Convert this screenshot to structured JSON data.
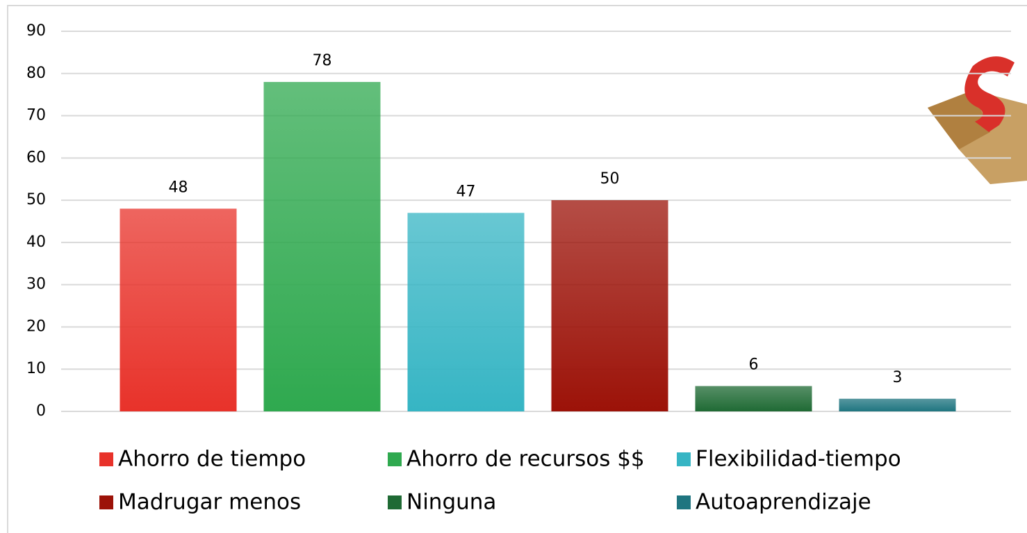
{
  "chart_data": {
    "type": "bar",
    "series": [
      {
        "name": "Ahorro de tiempo",
        "color": "#e8322a",
        "values": [
          48
        ]
      },
      {
        "name": "Ahorro de recursos $$",
        "color": "#2fa94f",
        "values": [
          78
        ]
      },
      {
        "name": "Flexibilidad-tiempo",
        "color": "#36b5c4",
        "values": [
          47
        ]
      },
      {
        "name": "Madrugar menos",
        "color": "#9c1208",
        "values": [
          50
        ]
      },
      {
        "name": "Ninguna",
        "color": "#1f6a34",
        "values": [
          6
        ]
      },
      {
        "name": "Autoaprendizaje",
        "color": "#1f7580",
        "values": [
          3
        ]
      }
    ],
    "ylim": [
      0,
      90
    ],
    "yticks": [
      0,
      10,
      20,
      30,
      40,
      50,
      60,
      70,
      80,
      90
    ],
    "grid": true
  }
}
